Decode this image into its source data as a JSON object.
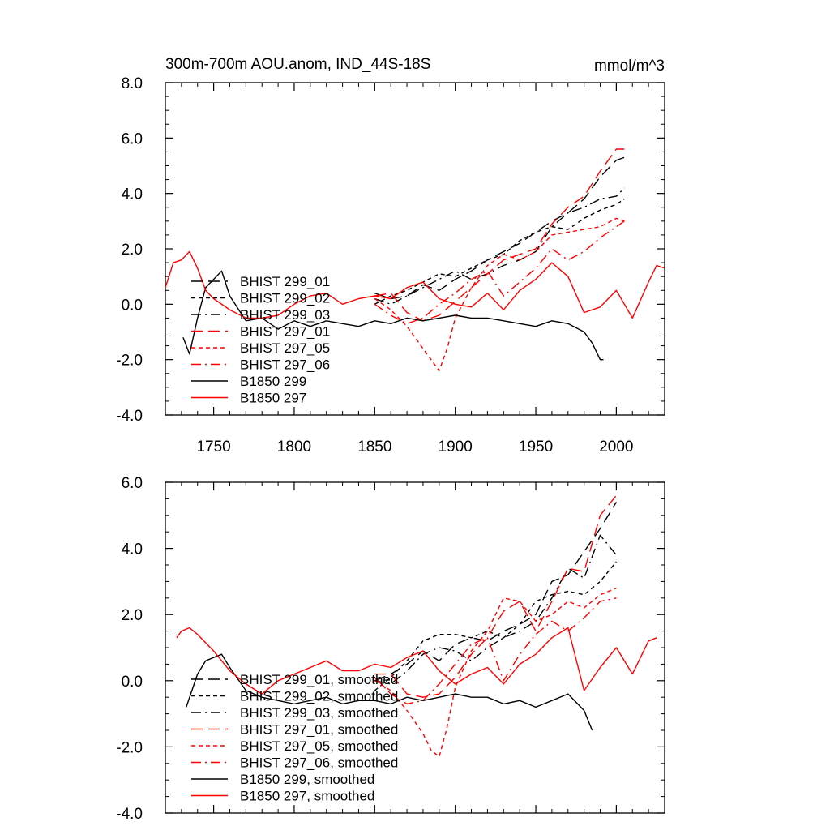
{
  "title": "300m-700m AOU.anom, IND_44S-18S",
  "units": "mmol/m^3",
  "chart_data": [
    {
      "type": "line",
      "id": "raw",
      "title": "300m-700m AOU.anom, IND_44S-18S",
      "units": "mmol/m^3",
      "xlim": [
        1720,
        2030
      ],
      "ylim": [
        -4.0,
        8.0
      ],
      "xticks": [
        1750,
        1800,
        1850,
        1900,
        1950,
        2000
      ],
      "xtick_labels": [
        "1750",
        "1800",
        "1850",
        "1900",
        "1950",
        "2000"
      ],
      "yticks": [
        -4.0,
        -2.0,
        0.0,
        2.0,
        4.0,
        6.0,
        8.0
      ],
      "ytick_labels": [
        "-4.0",
        "-2.0",
        "0.0",
        "2.0",
        "4.0",
        "6.0",
        "8.0"
      ],
      "legend_position": "lower-left",
      "series": [
        {
          "name": "BHIST 299_01",
          "color": "#000000",
          "dash": "long-dash",
          "x": [
            1850,
            1860,
            1870,
            1880,
            1890,
            1900,
            1910,
            1920,
            1930,
            1940,
            1950,
            1960,
            1970,
            1980,
            1990,
            2000,
            2005
          ],
          "y": [
            0.4,
            0.2,
            0.3,
            0.7,
            0.5,
            0.9,
            1.2,
            1.6,
            1.9,
            2.2,
            2.6,
            3.0,
            3.3,
            3.8,
            4.6,
            5.2,
            5.3
          ]
        },
        {
          "name": "BHIST 299_02",
          "color": "#000000",
          "dash": "short-dash",
          "x": [
            1850,
            1860,
            1870,
            1880,
            1890,
            1900,
            1910,
            1920,
            1930,
            1940,
            1950,
            1960,
            1970,
            1980,
            1990,
            2000,
            2005
          ],
          "y": [
            0.0,
            0.3,
            0.5,
            0.8,
            1.1,
            1.0,
            1.3,
            1.6,
            1.8,
            2.3,
            2.6,
            2.8,
            2.7,
            3.1,
            3.4,
            3.6,
            3.8
          ]
        },
        {
          "name": "BHIST 299_03",
          "color": "#000000",
          "dash": "dash-dot",
          "x": [
            1850,
            1860,
            1870,
            1880,
            1890,
            1900,
            1910,
            1920,
            1930,
            1940,
            1950,
            1960,
            1970,
            1980,
            1990,
            2000,
            2005
          ],
          "y": [
            0.2,
            0.0,
            0.3,
            0.6,
            0.9,
            1.2,
            0.9,
            1.1,
            1.4,
            1.6,
            1.9,
            2.8,
            3.3,
            3.5,
            3.8,
            3.9,
            4.2
          ]
        },
        {
          "name": "BHIST 297_01",
          "color": "#ff0000",
          "dash": "long-dash",
          "x": [
            1850,
            1860,
            1870,
            1880,
            1890,
            1900,
            1910,
            1920,
            1930,
            1940,
            1950,
            1960,
            1970,
            1980,
            1990,
            2000,
            2005
          ],
          "y": [
            0.3,
            0.4,
            -0.3,
            -0.6,
            -0.4,
            0.1,
            0.6,
            1.1,
            1.6,
            1.8,
            2.0,
            2.9,
            3.5,
            3.9,
            4.8,
            5.6,
            5.6
          ]
        },
        {
          "name": "BHIST 297_05",
          "color": "#ff0000",
          "dash": "short-dash",
          "x": [
            1850,
            1860,
            1870,
            1880,
            1885,
            1890,
            1895,
            1900,
            1910,
            1920,
            1930,
            1940,
            1950,
            1960,
            1970,
            1980,
            1990,
            2000,
            2005
          ],
          "y": [
            0.2,
            -0.2,
            -0.8,
            -1.6,
            -2.0,
            -2.4,
            -1.6,
            -0.5,
            0.6,
            1.4,
            1.8,
            1.6,
            1.9,
            2.5,
            2.6,
            2.7,
            2.8,
            3.1,
            3.0
          ]
        },
        {
          "name": "BHIST 297_06",
          "color": "#ff0000",
          "dash": "dash-dot",
          "x": [
            1850,
            1860,
            1870,
            1880,
            1890,
            1900,
            1910,
            1920,
            1930,
            1940,
            1950,
            1960,
            1970,
            1980,
            1990,
            2000,
            2005
          ],
          "y": [
            0.0,
            -0.4,
            -0.7,
            -0.5,
            0.0,
            0.4,
            0.9,
            1.2,
            0.3,
            0.8,
            1.3,
            2.0,
            1.6,
            1.9,
            2.4,
            2.8,
            3.0
          ]
        },
        {
          "name": "B1850 299",
          "color": "#000000",
          "dash": "solid",
          "x": [
            1731,
            1735,
            1740,
            1745,
            1750,
            1755,
            1760,
            1770,
            1780,
            1790,
            1800,
            1810,
            1820,
            1830,
            1840,
            1850,
            1860,
            1870,
            1880,
            1890,
            1900,
            1910,
            1920,
            1930,
            1940,
            1950,
            1960,
            1970,
            1980,
            1985,
            1990,
            1992
          ],
          "y": [
            -1.2,
            -1.8,
            -0.5,
            0.6,
            0.9,
            1.2,
            0.3,
            -0.6,
            -0.5,
            -0.9,
            -0.6,
            -0.8,
            -0.6,
            -0.7,
            -0.8,
            -0.6,
            -0.7,
            -0.5,
            -0.6,
            -0.5,
            -0.4,
            -0.5,
            -0.5,
            -0.6,
            -0.7,
            -0.8,
            -0.6,
            -0.7,
            -1.0,
            -1.4,
            -2.0,
            -2.0
          ]
        },
        {
          "name": "B1850 297",
          "color": "#ff0000",
          "dash": "solid",
          "x": [
            1720,
            1725,
            1730,
            1735,
            1740,
            1745,
            1750,
            1760,
            1770,
            1780,
            1790,
            1800,
            1810,
            1820,
            1830,
            1840,
            1850,
            1860,
            1870,
            1880,
            1890,
            1900,
            1910,
            1920,
            1930,
            1940,
            1950,
            1960,
            1970,
            1980,
            1990,
            2000,
            2010,
            2020,
            2025,
            2030
          ],
          "y": [
            0.6,
            1.5,
            1.6,
            1.9,
            1.3,
            0.5,
            0.2,
            -0.2,
            -0.5,
            -0.5,
            -0.4,
            0.0,
            0.3,
            0.4,
            0.0,
            0.2,
            0.3,
            0.2,
            0.6,
            0.8,
            0.2,
            0.0,
            -0.1,
            0.4,
            -0.2,
            0.5,
            0.9,
            1.5,
            1.0,
            -0.3,
            -0.1,
            0.5,
            -0.5,
            0.8,
            1.4,
            1.3
          ]
        }
      ]
    },
    {
      "type": "line",
      "id": "smoothed",
      "xlim": [
        1720,
        2030
      ],
      "ylim": [
        -4.0,
        6.0
      ],
      "xticks": [
        1750,
        1800,
        1850,
        1900,
        1950,
        2000
      ],
      "yticks": [
        -4.0,
        -2.0,
        0.0,
        2.0,
        4.0,
        6.0
      ],
      "ytick_labels": [
        "-4.0",
        "-2.0",
        "0.0",
        "2.0",
        "4.0",
        "6.0"
      ],
      "legend_position": "lower-left",
      "series": [
        {
          "name": "BHIST 299_01, smoothed",
          "color": "#000000",
          "dash": "long-dash",
          "x": [
            1850,
            1860,
            1870,
            1880,
            1890,
            1900,
            1910,
            1920,
            1930,
            1940,
            1950,
            1960,
            1970,
            1980,
            1990,
            2000
          ],
          "y": [
            0.0,
            0.2,
            0.5,
            0.9,
            0.6,
            1.1,
            1.3,
            1.2,
            1.5,
            1.7,
            2.0,
            3.0,
            3.2,
            3.9,
            4.6,
            5.4
          ]
        },
        {
          "name": "BHIST 299_02, smoothed",
          "color": "#000000",
          "dash": "short-dash",
          "x": [
            1850,
            1860,
            1870,
            1880,
            1890,
            1900,
            1910,
            1920,
            1930,
            1940,
            1950,
            1960,
            1970,
            1980,
            1990,
            2000
          ],
          "y": [
            -0.3,
            0.1,
            0.6,
            1.2,
            1.4,
            1.4,
            1.3,
            1.5,
            1.3,
            1.7,
            2.4,
            2.6,
            2.7,
            2.6,
            3.0,
            3.6
          ]
        },
        {
          "name": "BHIST 299_03, smoothed",
          "color": "#000000",
          "dash": "dash-dot",
          "x": [
            1850,
            1860,
            1870,
            1880,
            1890,
            1900,
            1910,
            1920,
            1930,
            1940,
            1950,
            1960,
            1970,
            1980,
            1990,
            2000
          ],
          "y": [
            0.0,
            -0.1,
            0.3,
            0.8,
            1.0,
            0.9,
            0.6,
            1.0,
            1.3,
            1.5,
            1.8,
            2.5,
            3.4,
            3.1,
            4.4,
            3.8
          ]
        },
        {
          "name": "BHIST 297_01, smoothed",
          "color": "#ff0000",
          "dash": "long-dash",
          "x": [
            1850,
            1860,
            1870,
            1880,
            1890,
            1900,
            1910,
            1920,
            1930,
            1940,
            1950,
            1960,
            1970,
            1980,
            1990,
            2000
          ],
          "y": [
            0.2,
            0.2,
            -0.4,
            -0.5,
            -0.4,
            0.1,
            0.8,
            1.3,
            2.1,
            2.4,
            1.5,
            2.4,
            3.4,
            3.3,
            5.0,
            5.6
          ]
        },
        {
          "name": "BHIST 297_05, smoothed",
          "color": "#ff0000",
          "dash": "short-dash",
          "x": [
            1850,
            1860,
            1870,
            1880,
            1885,
            1890,
            1895,
            1900,
            1910,
            1920,
            1930,
            1940,
            1950,
            1960,
            1970,
            1980,
            1990,
            2000
          ],
          "y": [
            0.0,
            -0.3,
            -0.9,
            -1.6,
            -2.1,
            -2.3,
            -1.4,
            -0.2,
            0.9,
            1.5,
            2.5,
            2.4,
            1.8,
            2.0,
            2.4,
            2.2,
            2.6,
            2.8
          ]
        },
        {
          "name": "BHIST 297_06, smoothed",
          "color": "#ff0000",
          "dash": "dash-dot",
          "x": [
            1850,
            1860,
            1870,
            1880,
            1890,
            1900,
            1910,
            1920,
            1930,
            1940,
            1950,
            1960,
            1970,
            1980,
            1990,
            2000
          ],
          "y": [
            0.1,
            -0.4,
            -0.7,
            -0.6,
            -0.1,
            0.5,
            1.1,
            1.3,
            0.0,
            0.8,
            1.4,
            1.8,
            1.5,
            1.9,
            2.4,
            2.5
          ]
        },
        {
          "name": "B1850 299, smoothed",
          "color": "#000000",
          "dash": "solid",
          "x": [
            1733,
            1740,
            1745,
            1750,
            1755,
            1760,
            1770,
            1780,
            1790,
            1800,
            1810,
            1820,
            1830,
            1840,
            1850,
            1860,
            1870,
            1880,
            1890,
            1900,
            1910,
            1920,
            1930,
            1940,
            1950,
            1960,
            1970,
            1980,
            1985
          ],
          "y": [
            -0.8,
            0.2,
            0.6,
            0.7,
            0.8,
            0.4,
            -0.3,
            -0.5,
            -0.6,
            -0.7,
            -0.6,
            -0.5,
            -0.7,
            -0.6,
            -0.6,
            -0.7,
            -0.5,
            -0.6,
            -0.5,
            -0.4,
            -0.5,
            -0.5,
            -0.7,
            -0.6,
            -0.8,
            -0.6,
            -0.4,
            -0.9,
            -1.5
          ]
        },
        {
          "name": "B1850 297, smoothed",
          "color": "#ff0000",
          "dash": "solid",
          "x": [
            1727,
            1730,
            1735,
            1740,
            1750,
            1760,
            1770,
            1780,
            1790,
            1800,
            1810,
            1820,
            1830,
            1840,
            1850,
            1860,
            1870,
            1880,
            1890,
            1900,
            1910,
            1920,
            1930,
            1940,
            1950,
            1960,
            1970,
            1980,
            1990,
            2000,
            2010,
            2020,
            2025
          ],
          "y": [
            1.3,
            1.5,
            1.6,
            1.4,
            0.9,
            0.3,
            -0.1,
            -0.4,
            0.0,
            0.2,
            0.4,
            0.6,
            0.3,
            0.3,
            0.5,
            0.4,
            0.7,
            0.9,
            0.3,
            -0.1,
            0.2,
            0.4,
            -0.1,
            0.5,
            0.8,
            1.3,
            1.6,
            -0.3,
            0.4,
            1.0,
            0.2,
            1.2,
            1.3
          ]
        }
      ]
    }
  ]
}
